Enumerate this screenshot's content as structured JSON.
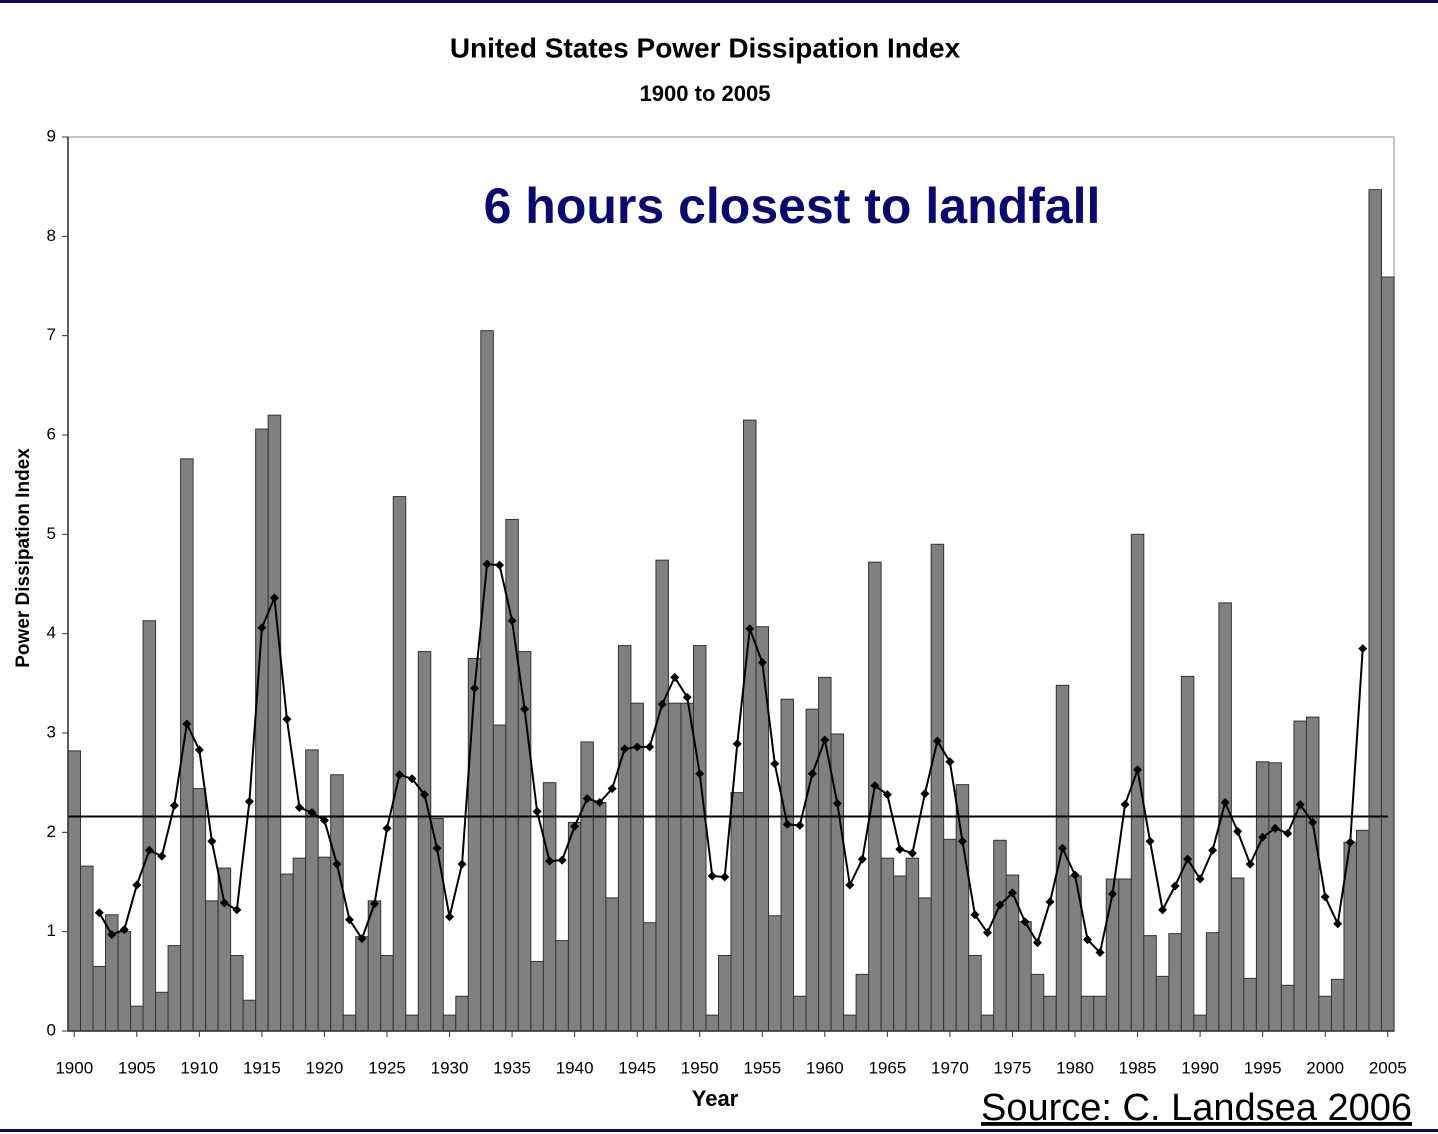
{
  "chart_data": {
    "type": "bar",
    "title": "United States Power Dissipation Index",
    "subtitle": "1900 to 2005",
    "annotation": "6 hours closest to landfall",
    "source": "Source: C. Landsea 2006",
    "xlabel": "Year",
    "ylabel": "Power Dissipation Index",
    "x": [
      1900,
      1901,
      1902,
      1903,
      1904,
      1905,
      1906,
      1907,
      1908,
      1909,
      1910,
      1911,
      1912,
      1913,
      1914,
      1915,
      1916,
      1917,
      1918,
      1919,
      1920,
      1921,
      1922,
      1923,
      1924,
      1925,
      1926,
      1927,
      1928,
      1929,
      1930,
      1931,
      1932,
      1933,
      1934,
      1935,
      1936,
      1937,
      1938,
      1939,
      1940,
      1941,
      1942,
      1943,
      1944,
      1945,
      1946,
      1947,
      1948,
      1949,
      1950,
      1951,
      1952,
      1953,
      1954,
      1955,
      1956,
      1957,
      1958,
      1959,
      1960,
      1961,
      1962,
      1963,
      1964,
      1965,
      1966,
      1967,
      1968,
      1969,
      1970,
      1971,
      1972,
      1973,
      1974,
      1975,
      1976,
      1977,
      1978,
      1979,
      1980,
      1981,
      1982,
      1983,
      1984,
      1985,
      1986,
      1987,
      1988,
      1989,
      1990,
      1991,
      1992,
      1993,
      1994,
      1995,
      1996,
      1997,
      1998,
      1999,
      2000,
      2001,
      2002,
      2003,
      2004,
      2005
    ],
    "series": [
      {
        "type": "bar",
        "color": "#808080",
        "values": [
          2.82,
          1.66,
          0.65,
          1.17,
          1.0,
          0.25,
          4.13,
          0.39,
          0.86,
          5.76,
          2.44,
          1.31,
          1.64,
          0.76,
          0.31,
          6.06,
          6.2,
          1.58,
          1.74,
          2.83,
          1.75,
          2.58,
          0.16,
          0.95,
          1.31,
          0.76,
          5.38,
          0.16,
          3.82,
          2.14,
          0.16,
          0.35,
          3.75,
          7.05,
          3.08,
          5.15,
          3.82,
          0.7,
          2.5,
          0.91,
          2.1,
          2.91,
          2.3,
          1.34,
          3.88,
          3.3,
          1.09,
          4.74,
          3.3,
          3.3,
          3.88,
          0.16,
          0.76,
          2.4,
          6.15,
          4.07,
          1.16,
          3.34,
          0.35,
          3.24,
          3.56,
          2.99,
          0.16,
          0.57,
          4.72,
          1.74,
          1.56,
          1.74,
          1.34,
          4.9,
          1.93,
          2.48,
          0.76,
          0.16,
          1.92,
          1.57,
          1.1,
          0.57,
          0.35,
          3.48,
          1.56,
          0.35,
          0.35,
          1.53,
          1.53,
          5.0,
          0.96,
          0.55,
          0.98,
          3.57,
          0.16,
          0.99,
          4.31,
          1.54,
          0.53,
          2.71,
          2.7,
          0.46,
          3.12,
          3.16,
          0.35,
          0.52,
          1.9,
          2.02,
          8.47,
          7.59
        ]
      },
      {
        "type": "line",
        "color": "#000000",
        "values": [
          null,
          null,
          1.19,
          0.97,
          1.02,
          1.47,
          1.82,
          1.76,
          2.27,
          3.09,
          2.83,
          1.91,
          1.29,
          1.22,
          2.31,
          4.06,
          4.36,
          3.14,
          2.25,
          2.2,
          2.12,
          1.68,
          1.12,
          0.93,
          1.28,
          2.04,
          2.58,
          2.54,
          2.38,
          1.84,
          1.15,
          1.68,
          3.45,
          4.7,
          4.69,
          4.13,
          3.24,
          2.21,
          1.71,
          1.72,
          2.06,
          2.34,
          2.3,
          2.44,
          2.84,
          2.86,
          2.86,
          3.29,
          3.56,
          3.36,
          2.59,
          1.56,
          1.55,
          2.89,
          4.05,
          3.71,
          2.69,
          2.08,
          2.07,
          2.59,
          2.93,
          2.29,
          1.47,
          1.73,
          2.47,
          2.38,
          1.83,
          1.79,
          2.39,
          2.92,
          2.71,
          1.91,
          1.17,
          0.99,
          1.27,
          1.39,
          1.1,
          0.89,
          1.3,
          1.84,
          1.57,
          0.92,
          0.79,
          1.38,
          2.28,
          2.63,
          1.91,
          1.22,
          1.46,
          1.73,
          1.53,
          1.82,
          2.3,
          2.01,
          1.68,
          1.95,
          2.04,
          1.99,
          2.28,
          2.1,
          1.35,
          1.08,
          1.9,
          3.85,
          null,
          null
        ]
      }
    ],
    "reference_line": 2.16,
    "xlim": [
      1899.5,
      2005.5
    ],
    "xticks": [
      1900,
      1905,
      1910,
      1915,
      1920,
      1925,
      1930,
      1935,
      1940,
      1945,
      1950,
      1955,
      1960,
      1965,
      1970,
      1975,
      1980,
      1985,
      1990,
      1995,
      2000,
      2005
    ],
    "ylim": [
      0,
      9
    ],
    "yticks": [
      0,
      1,
      2,
      3,
      4,
      5,
      6,
      7,
      8,
      9
    ]
  }
}
